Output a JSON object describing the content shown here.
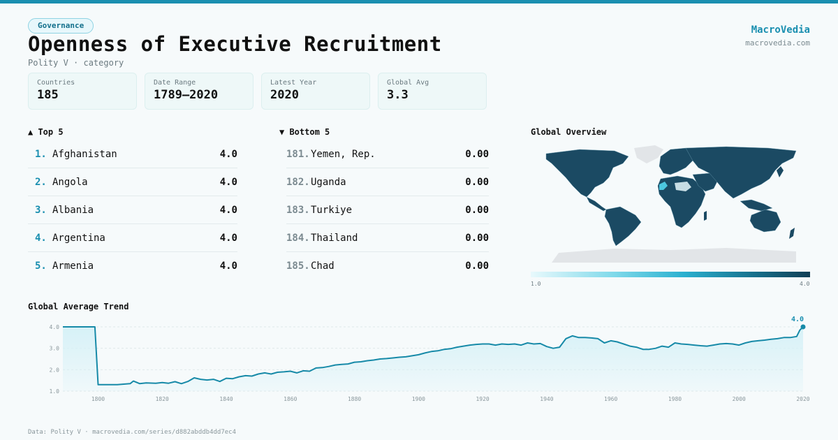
{
  "header": {
    "category_badge": "Governance",
    "title": "Openness of Executive Recruitment",
    "subtitle": "Polity V · category",
    "brand_name": "MacroVedia",
    "brand_url": "macrovedia.com"
  },
  "stats": [
    {
      "label": "Countries",
      "value": "185"
    },
    {
      "label": "Date Range",
      "value": "1789–2020"
    },
    {
      "label": "Latest Year",
      "value": "2020"
    },
    {
      "label": "Global Avg",
      "value": "3.3"
    }
  ],
  "top5": {
    "heading": "▲ Top 5",
    "items": [
      {
        "rank": "1.",
        "name": "Afghanistan",
        "value": "4.0"
      },
      {
        "rank": "2.",
        "name": "Angola",
        "value": "4.0"
      },
      {
        "rank": "3.",
        "name": "Albania",
        "value": "4.0"
      },
      {
        "rank": "4.",
        "name": "Argentina",
        "value": "4.0"
      },
      {
        "rank": "5.",
        "name": "Armenia",
        "value": "4.0"
      }
    ]
  },
  "bottom5": {
    "heading": "▼ Bottom 5",
    "items": [
      {
        "rank": "181.",
        "name": "Yemen, Rep.",
        "value": "0.00"
      },
      {
        "rank": "182.",
        "name": "Uganda",
        "value": "0.00"
      },
      {
        "rank": "183.",
        "name": "Turkiye",
        "value": "0.00"
      },
      {
        "rank": "184.",
        "name": "Thailand",
        "value": "0.00"
      },
      {
        "rank": "185.",
        "name": "Chad",
        "value": "0.00"
      }
    ]
  },
  "map": {
    "heading": "Global Overview",
    "scale_min": "1.0",
    "scale_max": "4.0",
    "colors": {
      "land": "#1b4a63",
      "borders": "#6f9fb2",
      "highlight": "#4cc7e0",
      "nodata": "#e2e5e8"
    }
  },
  "footer": "Data: Polity V · macrovedia.com/series/d882abddb4dd7ec4",
  "colors": {
    "accent": "#1a8fb0",
    "line": "#178aa8",
    "area": "#d6f1f7"
  },
  "chart_data": {
    "type": "area",
    "title": "Global Average Trend",
    "xlabel": "",
    "ylabel": "",
    "xlim": [
      1789,
      2020
    ],
    "ylim": [
      1.0,
      4.0
    ],
    "x_ticks": [
      1800,
      1820,
      1840,
      1860,
      1880,
      1900,
      1920,
      1940,
      1960,
      1980,
      2000,
      2020
    ],
    "y_ticks": [
      1.0,
      2.0,
      3.0,
      4.0
    ],
    "grid": true,
    "end_label": "4.0",
    "series": [
      {
        "x": [
          1789,
          1799,
          1800,
          1802,
          1806,
          1810,
          1811,
          1813,
          1815,
          1818,
          1820,
          1822,
          1824,
          1826,
          1828,
          1830,
          1832,
          1834,
          1836,
          1838,
          1840,
          1842,
          1844,
          1846,
          1848,
          1850,
          1852,
          1854,
          1856,
          1858,
          1860,
          1862,
          1864,
          1866,
          1868,
          1870,
          1872,
          1874,
          1876,
          1878,
          1880,
          1882,
          1884,
          1886,
          1888,
          1890,
          1892,
          1894,
          1896,
          1898,
          1900,
          1902,
          1904,
          1906,
          1908,
          1910,
          1912,
          1914,
          1916,
          1918,
          1920,
          1922,
          1924,
          1926,
          1928,
          1930,
          1932,
          1934,
          1936,
          1938,
          1940,
          1942,
          1944,
          1946,
          1948,
          1950,
          1952,
          1954,
          1956,
          1958,
          1960,
          1962,
          1964,
          1966,
          1968,
          1970,
          1972,
          1974,
          1976,
          1978,
          1980,
          1982,
          1984,
          1986,
          1988,
          1990,
          1992,
          1994,
          1996,
          1998,
          2000,
          2002,
          2004,
          2006,
          2008,
          2010,
          2012,
          2014,
          2016,
          2018,
          2019,
          2020
        ],
        "values": [
          4.0,
          4.0,
          1.3,
          1.3,
          1.3,
          1.35,
          1.47,
          1.35,
          1.38,
          1.37,
          1.4,
          1.37,
          1.44,
          1.35,
          1.45,
          1.62,
          1.55,
          1.52,
          1.55,
          1.45,
          1.6,
          1.58,
          1.67,
          1.72,
          1.7,
          1.8,
          1.85,
          1.8,
          1.88,
          1.9,
          1.93,
          1.85,
          1.95,
          1.93,
          2.08,
          2.1,
          2.15,
          2.22,
          2.25,
          2.27,
          2.35,
          2.37,
          2.42,
          2.45,
          2.5,
          2.52,
          2.55,
          2.58,
          2.6,
          2.65,
          2.7,
          2.78,
          2.85,
          2.88,
          2.95,
          2.98,
          3.05,
          3.1,
          3.15,
          3.18,
          3.2,
          3.2,
          3.15,
          3.2,
          3.18,
          3.2,
          3.15,
          3.25,
          3.2,
          3.22,
          3.08,
          3.0,
          3.05,
          3.45,
          3.58,
          3.5,
          3.5,
          3.48,
          3.45,
          3.25,
          3.35,
          3.3,
          3.2,
          3.1,
          3.05,
          2.95,
          2.95,
          3.0,
          3.1,
          3.05,
          3.25,
          3.2,
          3.18,
          3.15,
          3.12,
          3.1,
          3.15,
          3.2,
          3.22,
          3.2,
          3.15,
          3.25,
          3.32,
          3.35,
          3.38,
          3.42,
          3.45,
          3.5,
          3.5,
          3.55,
          3.85,
          4.0
        ]
      }
    ]
  }
}
